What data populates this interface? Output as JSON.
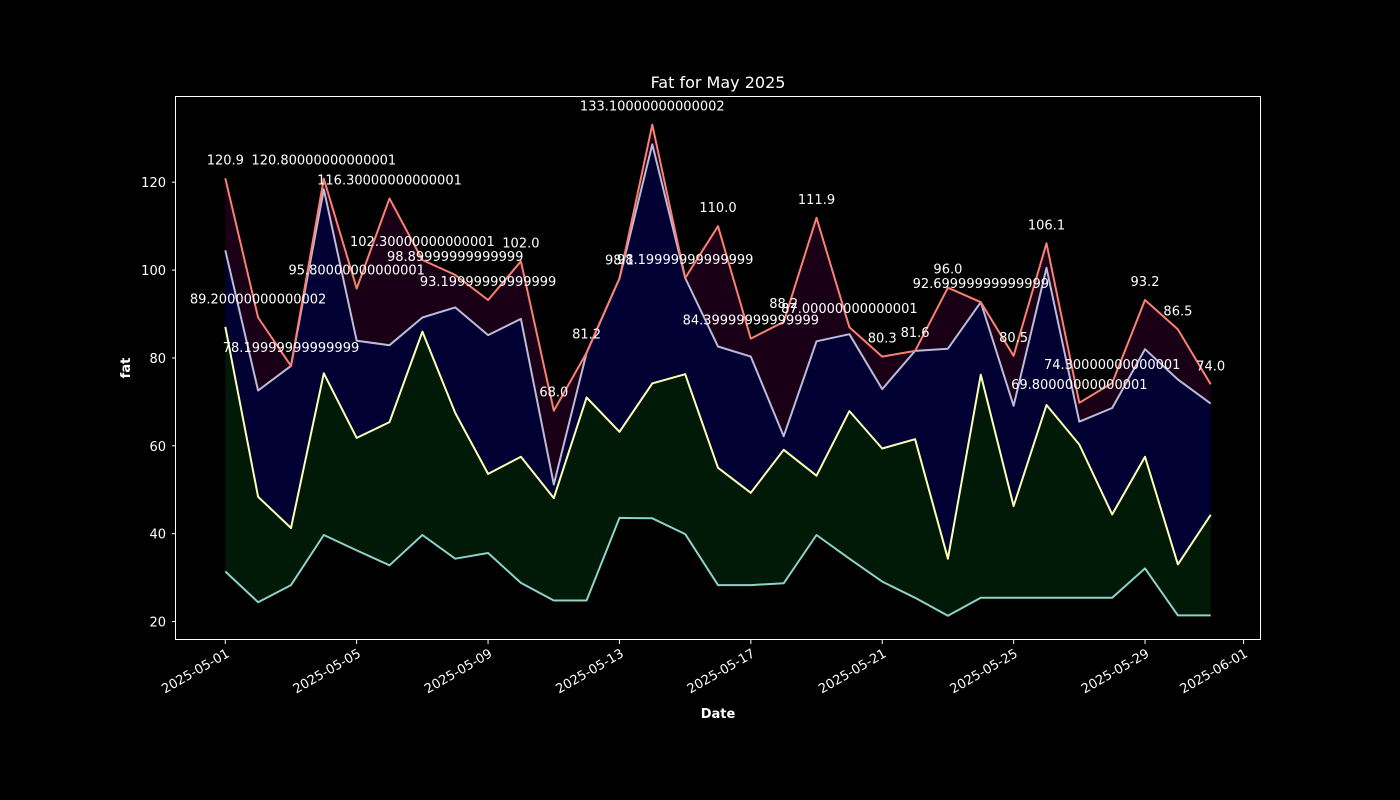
{
  "chart_data": {
    "type": "area",
    "title": "Fat for May 2025",
    "xlabel": "Date",
    "ylabel": "fat",
    "xlim": [
      "2025-04-29.5",
      "2025-06-01.5"
    ],
    "ylim": [
      15.8,
      139.4
    ],
    "yticks": [
      20,
      40,
      60,
      80,
      100,
      120
    ],
    "xticks": [
      "2025-05-01",
      "2025-05-05",
      "2025-05-09",
      "2025-05-13",
      "2025-05-17",
      "2025-05-21",
      "2025-05-25",
      "2025-05-29",
      "2025-06-01"
    ],
    "dates": [
      "2025-05-01",
      "2025-05-02",
      "2025-05-03",
      "2025-05-04",
      "2025-05-05",
      "2025-05-06",
      "2025-05-07",
      "2025-05-08",
      "2025-05-09",
      "2025-05-10",
      "2025-05-11",
      "2025-05-12",
      "2025-05-13",
      "2025-05-14",
      "2025-05-15",
      "2025-05-16",
      "2025-05-17",
      "2025-05-18",
      "2025-05-19",
      "2025-05-20",
      "2025-05-21",
      "2025-05-22",
      "2025-05-23",
      "2025-05-24",
      "2025-05-25",
      "2025-05-26",
      "2025-05-27",
      "2025-05-28",
      "2025-05-29",
      "2025-05-30",
      "2025-05-31"
    ],
    "series": [
      {
        "color": "#8dd3c7",
        "fill": "#000000",
        "values": [
          31.4,
          24.4,
          28.3,
          39.7,
          36.2,
          32.8,
          39.7,
          34.3,
          35.6,
          28.8,
          24.8,
          24.8,
          43.6,
          43.5,
          39.9,
          28.3,
          28.3,
          28.7,
          39.7,
          34.3,
          29.1,
          25.4,
          21.3,
          25.4,
          25.4,
          25.4,
          25.4,
          25.4,
          32.1,
          21.4,
          21.4
        ]
      },
      {
        "color": "#ffffb3",
        "fill": "#001a07",
        "values": [
          87.1,
          48.4,
          41.3,
          76.5,
          61.8,
          65.4,
          86.0,
          67.5,
          53.6,
          57.5,
          48.1,
          71.0,
          63.2,
          74.2,
          76.3,
          55.0,
          49.3,
          59.1,
          53.2,
          67.9,
          59.4,
          61.5,
          34.3,
          76.2,
          46.3,
          69.3,
          60.3,
          44.4,
          57.5,
          33.0,
          44.3
        ]
      },
      {
        "color": "#bebada",
        "fill": "#000033",
        "values": [
          104.5,
          72.6,
          78.2,
          118.4,
          83.9,
          82.9,
          89.2,
          91.5,
          85.2,
          88.9,
          51.2,
          81.2,
          98.1,
          128.6,
          98.2,
          82.6,
          80.3,
          62.2,
          83.8,
          85.4,
          72.9,
          81.6,
          82.1,
          92.7,
          69.1,
          100.5,
          65.5,
          68.6,
          82.0,
          75.1,
          69.6
        ]
      },
      {
        "color": "#fb8072",
        "fill": "#1a0016",
        "values": [
          120.9,
          89.2,
          78.2,
          120.8,
          95.8,
          116.3,
          102.3,
          98.9,
          93.2,
          102.0,
          68.0,
          81.2,
          98.1,
          133.1,
          98.2,
          110.0,
          84.4,
          88.2,
          111.9,
          87.0,
          80.3,
          81.6,
          96.0,
          92.7,
          80.5,
          106.1,
          69.8,
          74.3,
          93.2,
          86.5,
          74.0
        ]
      }
    ],
    "data_labels": [
      {
        "date": "2025-05-01",
        "value": 120.9,
        "text": "120.9"
      },
      {
        "date": "2025-05-02",
        "value": 89.2,
        "text": "89.20000000000002"
      },
      {
        "date": "2025-05-03",
        "value": 78.2,
        "text": "78.19999999999999"
      },
      {
        "date": "2025-05-04",
        "value": 120.8,
        "text": "120.80000000000001"
      },
      {
        "date": "2025-05-05",
        "value": 95.8,
        "text": "95.80000000000001"
      },
      {
        "date": "2025-05-06",
        "value": 116.3,
        "text": "116.30000000000001"
      },
      {
        "date": "2025-05-07",
        "value": 102.3,
        "text": "102.30000000000001"
      },
      {
        "date": "2025-05-08",
        "value": 98.9,
        "text": "98.89999999999999"
      },
      {
        "date": "2025-05-09",
        "value": 93.2,
        "text": "93.19999999999999"
      },
      {
        "date": "2025-05-10",
        "value": 102.0,
        "text": "102.0"
      },
      {
        "date": "2025-05-11",
        "value": 68.0,
        "text": "68.0"
      },
      {
        "date": "2025-05-12",
        "value": 81.2,
        "text": "81.2"
      },
      {
        "date": "2025-05-13",
        "value": 98.1,
        "text": "98.1"
      },
      {
        "date": "2025-05-14",
        "value": 133.1,
        "text": "133.10000000000002"
      },
      {
        "date": "2025-05-15",
        "value": 98.2,
        "text": "98.19999999999999"
      },
      {
        "date": "2025-05-16",
        "value": 110.0,
        "text": "110.0"
      },
      {
        "date": "2025-05-17",
        "value": 84.4,
        "text": "84.39999999999999"
      },
      {
        "date": "2025-05-18",
        "value": 88.2,
        "text": "88.2"
      },
      {
        "date": "2025-05-19",
        "value": 111.9,
        "text": "111.9"
      },
      {
        "date": "2025-05-20",
        "value": 87.0,
        "text": "87.00000000000001"
      },
      {
        "date": "2025-05-21",
        "value": 80.3,
        "text": "80.3"
      },
      {
        "date": "2025-05-22",
        "value": 81.6,
        "text": "81.6"
      },
      {
        "date": "2025-05-23",
        "value": 96.0,
        "text": "96.0"
      },
      {
        "date": "2025-05-24",
        "value": 92.7,
        "text": "92.69999999999999"
      },
      {
        "date": "2025-05-25",
        "value": 80.5,
        "text": "80.5"
      },
      {
        "date": "2025-05-26",
        "value": 106.1,
        "text": "106.1"
      },
      {
        "date": "2025-05-27",
        "value": 69.8,
        "text": "69.80000000000001"
      },
      {
        "date": "2025-05-28",
        "value": 74.3,
        "text": "74.30000000000001"
      },
      {
        "date": "2025-05-29",
        "value": 93.2,
        "text": "93.2"
      },
      {
        "date": "2025-05-30",
        "value": 86.5,
        "text": "86.5"
      },
      {
        "date": "2025-05-31",
        "value": 74.0,
        "text": "74.0"
      }
    ],
    "grid": false,
    "legend": "none"
  }
}
